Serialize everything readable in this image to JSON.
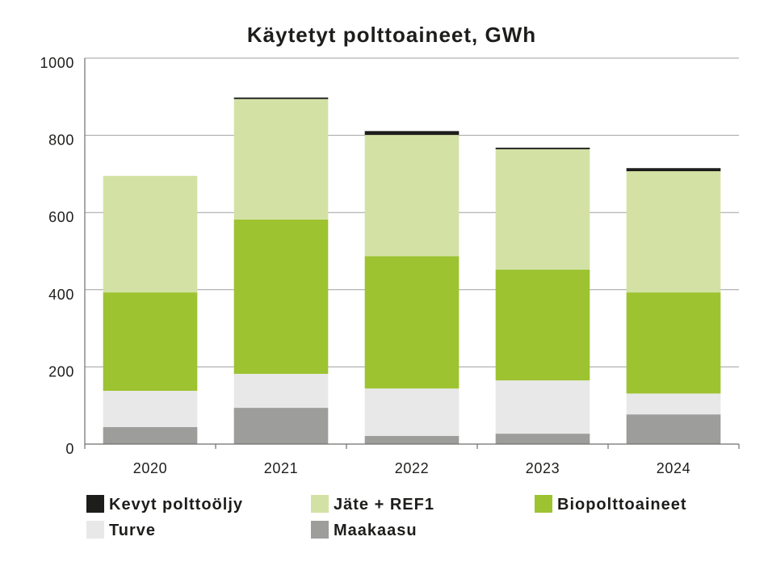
{
  "chart_data": {
    "type": "bar",
    "stacked": true,
    "title": "Käytetyt polttoaineet, GWh",
    "categories": [
      "2020",
      "2021",
      "2022",
      "2023",
      "2024"
    ],
    "ylim": [
      0,
      1000
    ],
    "yticks": [
      0,
      200,
      400,
      600,
      800,
      1000
    ],
    "grid": true,
    "legend_position": "bottom",
    "series": [
      {
        "name": "Kevyt polttoöljy",
        "color": "#1d1d1b",
        "values": [
          0,
          4,
          10,
          4,
          8
        ]
      },
      {
        "name": "Jäte + REF1",
        "color": "#d3e2a4",
        "values": [
          302,
          312,
          314,
          312,
          314
        ]
      },
      {
        "name": "Biopolttoaineet",
        "color": "#9dc331",
        "values": [
          255,
          400,
          343,
          287,
          262
        ]
      },
      {
        "name": "Turve",
        "color": "#e8e8e8",
        "values": [
          94,
          88,
          123,
          138,
          54
        ]
      },
      {
        "name": "Maakaasu",
        "color": "#9d9d9c",
        "values": [
          44,
          94,
          21,
          27,
          77
        ]
      }
    ]
  }
}
